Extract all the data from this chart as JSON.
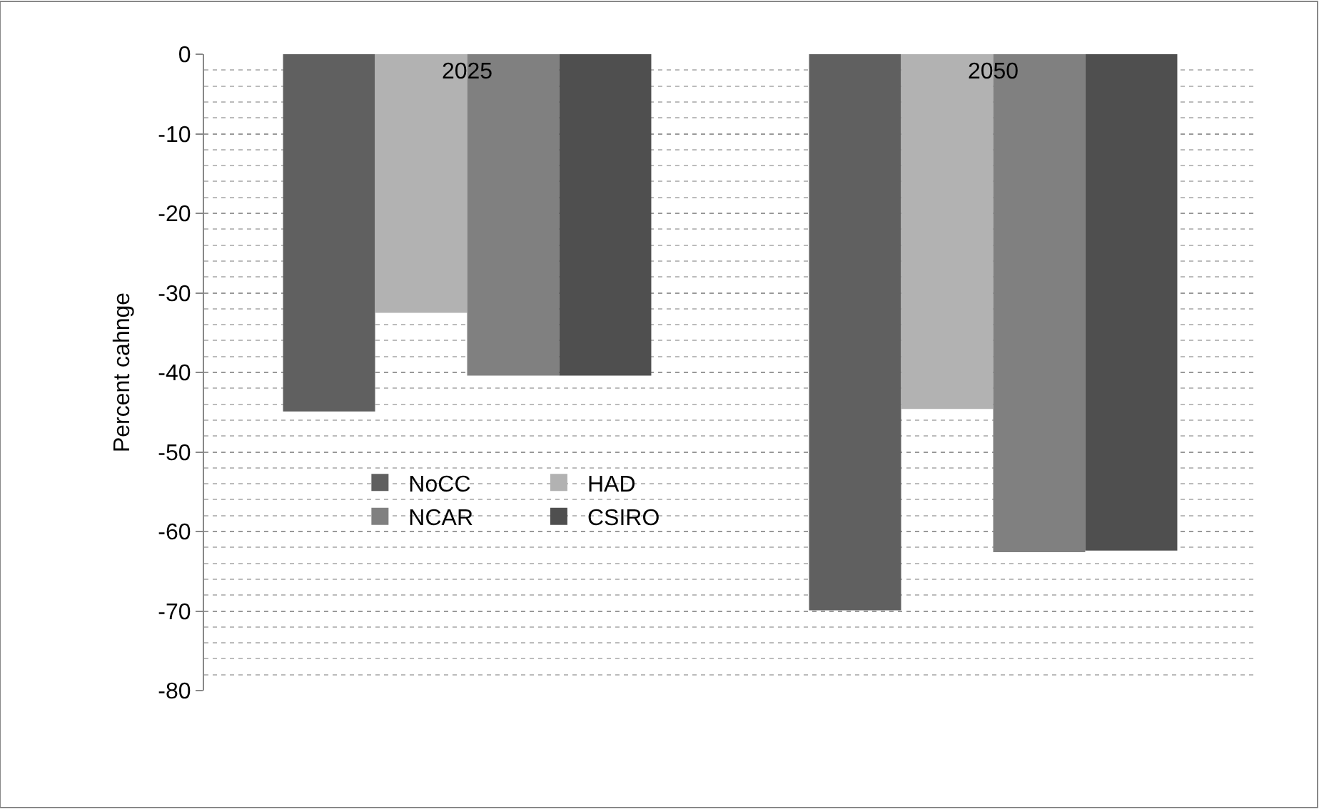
{
  "chart_data": {
    "type": "bar",
    "ylabel": "Percent cahnge",
    "categories": [
      "2025",
      "2050"
    ],
    "series": [
      {
        "name": "NoCC",
        "color": "#606060",
        "values": [
          -44.9,
          -69.9
        ]
      },
      {
        "name": "HAD",
        "color": "#b2b2b2",
        "values": [
          -32.5,
          -44.6
        ]
      },
      {
        "name": "NCAR",
        "color": "#808080",
        "values": [
          -40.4,
          -62.6
        ]
      },
      {
        "name": "CSIRO",
        "color": "#4f4f4f",
        "values": [
          -40.4,
          -62.4
        ]
      }
    ],
    "ylim": [
      -80,
      0
    ],
    "yticks": [
      -80,
      -70,
      -60,
      -50,
      -40,
      -30,
      -20,
      -10,
      0
    ],
    "grid": "y",
    "legend": "center left"
  }
}
